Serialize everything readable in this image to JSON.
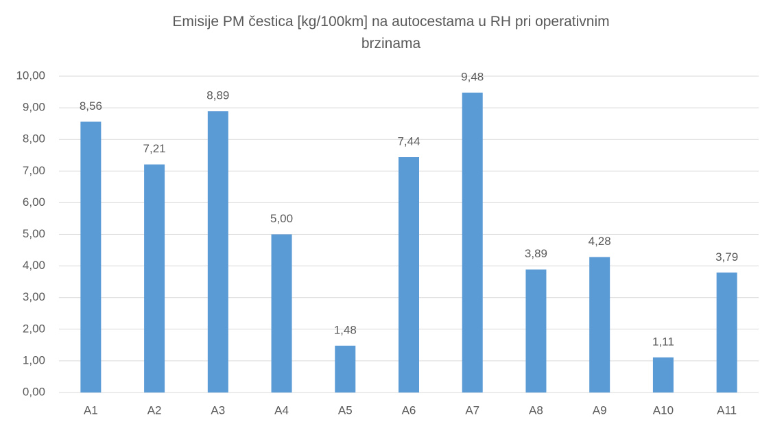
{
  "chart_data": {
    "type": "bar",
    "title": "Emisije PM čestica [kg/100km] na autocestama u RH pri operativnim brzinama",
    "categories": [
      "A1",
      "A2",
      "A3",
      "A4",
      "A5",
      "A6",
      "A7",
      "A8",
      "A9",
      "A10",
      "A11"
    ],
    "values": [
      8.56,
      7.21,
      8.89,
      5.0,
      1.48,
      7.44,
      9.48,
      3.89,
      4.28,
      1.11,
      3.79
    ],
    "value_labels": [
      "8,56",
      "7,21",
      "8,89",
      "5,00",
      "1,48",
      "7,44",
      "9,48",
      "3,89",
      "4,28",
      "1,11",
      "3,79"
    ],
    "color": "#5b9bd5",
    "ylim": [
      0,
      10
    ],
    "yticks": [
      {
        "value": 0,
        "label": "0,00"
      },
      {
        "value": 1,
        "label": "1,00"
      },
      {
        "value": 2,
        "label": "2,00"
      },
      {
        "value": 3,
        "label": "3,00"
      },
      {
        "value": 4,
        "label": "4,00"
      },
      {
        "value": 5,
        "label": "5,00"
      },
      {
        "value": 6,
        "label": "6,00"
      },
      {
        "value": 7,
        "label": "7,00"
      },
      {
        "value": 8,
        "label": "8,00"
      },
      {
        "value": 9,
        "label": "9,00"
      },
      {
        "value": 10,
        "label": "10,00"
      }
    ],
    "grid": true
  }
}
